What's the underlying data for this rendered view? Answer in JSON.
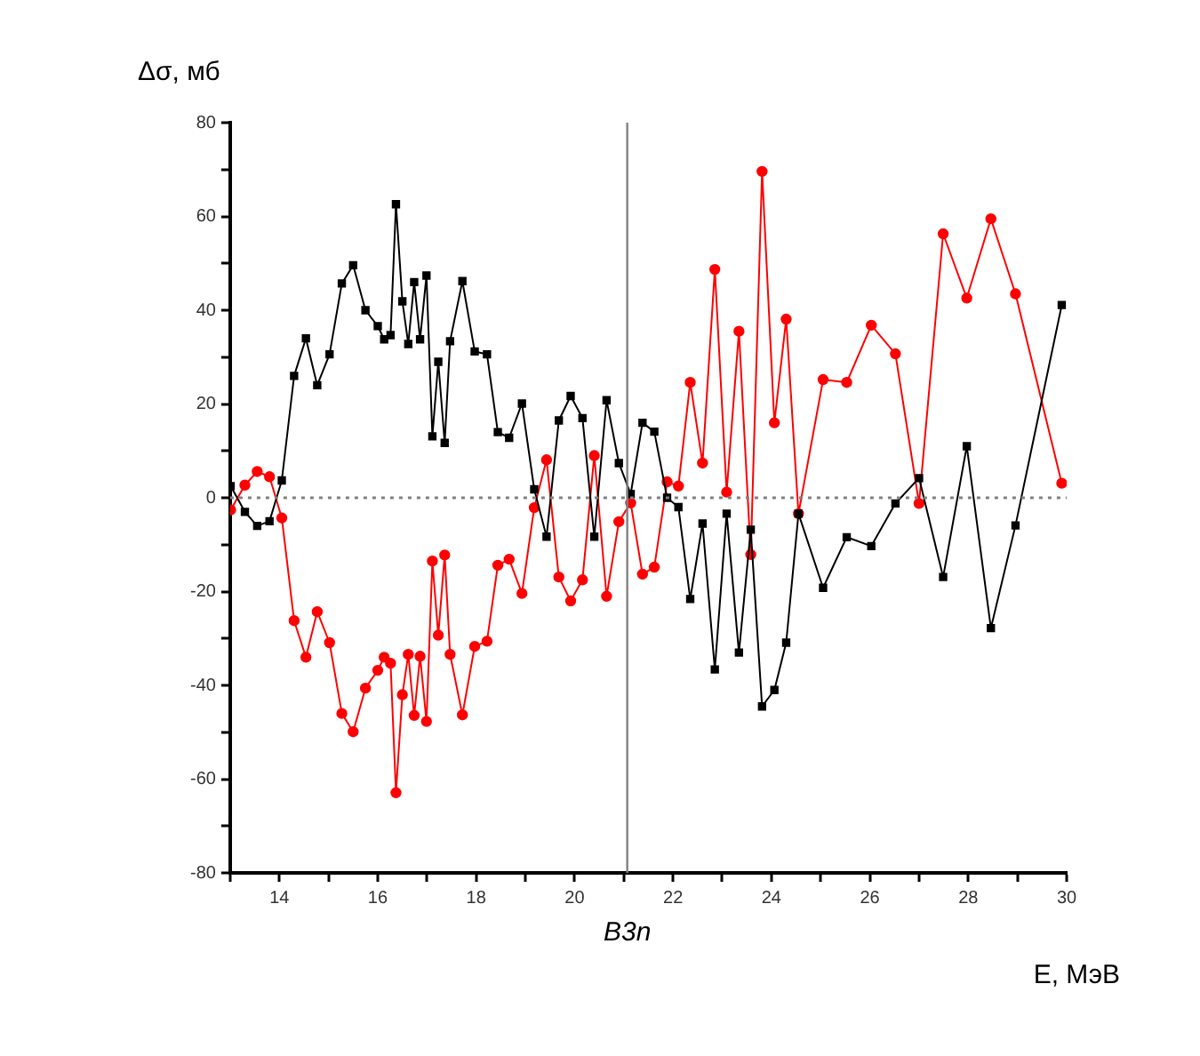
{
  "chart_data": {
    "type": "line",
    "xlabel": "E, МэВ",
    "ylabel": "Δσ, мб",
    "x": [
      13.01,
      13.3,
      13.55,
      13.8,
      14.05,
      14.3,
      14.54,
      14.77,
      15.02,
      15.27,
      15.5,
      15.75,
      16.0,
      16.13,
      16.26,
      16.37,
      16.5,
      16.62,
      16.74,
      16.86,
      16.99,
      17.11,
      17.23,
      17.36,
      17.47,
      17.72,
      17.97,
      18.22,
      18.44,
      18.67,
      18.93,
      19.18,
      19.43,
      19.68,
      19.92,
      20.16,
      20.4,
      20.65,
      20.9,
      21.14,
      21.38,
      21.62,
      21.88,
      22.11,
      22.35,
      22.6,
      22.85,
      23.09,
      23.34,
      23.58,
      23.81,
      24.06,
      24.3,
      24.55,
      25.05,
      25.53,
      26.03,
      26.52,
      27.0,
      27.49,
      27.97,
      28.46,
      28.96,
      29.9
    ],
    "series": [
      {
        "color": "#000000",
        "marker": "square",
        "values": [
          2.5,
          -3,
          -6,
          -5,
          3.7,
          26,
          34,
          24,
          30.6,
          45.7,
          49.6,
          40,
          36.6,
          33.8,
          34.7,
          62.6,
          41.9,
          32.8,
          46,
          33.8,
          47.4,
          13.1,
          29,
          11.7,
          33.4,
          46.2,
          31.2,
          30.6,
          14,
          12.8,
          20.1,
          1.8,
          -8.3,
          16.5,
          21.7,
          17,
          -8.3,
          20.8,
          7.4,
          0.8,
          16,
          14.1,
          0,
          -2,
          -21.6,
          -5.5,
          -36.6,
          -3.4,
          -33,
          -6.8,
          -44.5,
          -41,
          -30.9,
          -3.4,
          -19.2,
          -8.4,
          -10.3,
          -1.2,
          4.2,
          -16.9,
          11,
          -27.8,
          -5.9,
          41.1
        ]
      },
      {
        "color": "#ff0000",
        "marker": "circle",
        "values": [
          -2.6,
          2.7,
          5.6,
          4.5,
          -4.3,
          -26.2,
          -34,
          -24.3,
          -30.9,
          -46,
          -49.9,
          -40.6,
          -36.8,
          -34,
          -35.3,
          -62.9,
          -42,
          -33.4,
          -46.4,
          -33.8,
          -47.7,
          -13.5,
          -29.3,
          -12.2,
          -33.4,
          -46.3,
          -31.7,
          -30.6,
          -14.4,
          -13.1,
          -20.4,
          -2.1,
          8.1,
          -16.9,
          -22,
          -17.5,
          9,
          -21,
          -5.1,
          -1.1,
          -16.3,
          -14.8,
          3.4,
          2.5,
          24.6,
          7.4,
          48.7,
          1.2,
          35.5,
          -12.1,
          69.6,
          16,
          38.1,
          -3.4,
          25.2,
          24.6,
          36.8,
          30.7,
          -1.2,
          56.3,
          42.6,
          59.5,
          43.5,
          3.1
        ]
      }
    ],
    "xlim": [
      13,
      30
    ],
    "xticks": [
      {
        "value": 13,
        "label": null
      },
      14,
      {
        "value": 15,
        "label": null
      },
      16,
      {
        "value": 17,
        "label": null
      },
      18,
      {
        "value": 19,
        "label": null
      },
      20,
      {
        "value": 21,
        "label": null
      },
      22,
      {
        "value": 23,
        "label": null
      },
      24,
      {
        "value": 25,
        "label": null
      },
      26,
      {
        "value": 27,
        "label": null
      },
      28,
      {
        "value": 29,
        "label": null
      },
      30
    ],
    "ylim": [
      -80,
      80
    ],
    "yticks": [
      -80,
      {
        "value": -70,
        "label": null
      },
      -60,
      {
        "value": -50,
        "label": null
      },
      -40,
      {
        "value": -30,
        "label": null
      },
      -20,
      {
        "value": -10,
        "label": null
      },
      0,
      {
        "value": 10,
        "label": null
      },
      20,
      {
        "value": 30,
        "label": null
      },
      40,
      {
        "value": 50,
        "label": null
      },
      60,
      {
        "value": 70,
        "label": null
      },
      80
    ],
    "ref_lines": [
      {
        "axis": "x",
        "value": 21.07,
        "label": "B3n",
        "color": "#808080",
        "line_style": "solid"
      },
      {
        "axis": "y",
        "value": 0,
        "color": "#808080",
        "line_style": "dotted"
      }
    ],
    "grid": false,
    "legend": false,
    "line_style": "solid"
  }
}
